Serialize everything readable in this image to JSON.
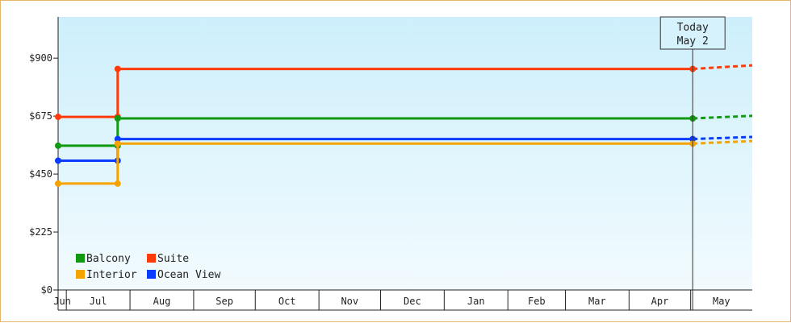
{
  "chart_data": {
    "type": "line",
    "step": true,
    "y_ticks": [
      {
        "value": 0,
        "label": "$0"
      },
      {
        "value": 225,
        "label": "$225"
      },
      {
        "value": 450,
        "label": "$450"
      },
      {
        "value": 675,
        "label": "$675"
      },
      {
        "value": 900,
        "label": "$900"
      }
    ],
    "ylim": [
      0,
      1060
    ],
    "x_domain": [
      "2022-06-27",
      "2023-05-31"
    ],
    "x_months": [
      {
        "label": "Jun",
        "start": "2022-06-27",
        "end": "2022-07-01"
      },
      {
        "label": "Jul",
        "start": "2022-07-01",
        "end": "2022-08-01"
      },
      {
        "label": "Aug",
        "start": "2022-08-01",
        "end": "2022-09-01"
      },
      {
        "label": "Sep",
        "start": "2022-09-01",
        "end": "2022-10-01"
      },
      {
        "label": "Oct",
        "start": "2022-10-01",
        "end": "2022-11-01"
      },
      {
        "label": "Nov",
        "start": "2022-11-01",
        "end": "2022-12-01"
      },
      {
        "label": "Dec",
        "start": "2022-12-01",
        "end": "2023-01-01"
      },
      {
        "label": "Jan",
        "start": "2023-01-01",
        "end": "2023-02-01"
      },
      {
        "label": "Feb",
        "start": "2023-02-01",
        "end": "2023-03-01"
      },
      {
        "label": "Mar",
        "start": "2023-03-01",
        "end": "2023-04-01"
      },
      {
        "label": "Apr",
        "start": "2023-04-01",
        "end": "2023-05-01"
      },
      {
        "label": "May",
        "start": "2023-05-01",
        "end": "2023-05-31"
      }
    ],
    "today": {
      "date": "2023-05-02",
      "line1": "Today",
      "line2": "May 2"
    },
    "legend_position": "bottom-left",
    "grid": false,
    "series": [
      {
        "name": "Suite",
        "color": "#ff3b0a",
        "points": [
          [
            "2022-06-27",
            672
          ],
          [
            "2022-07-26",
            672
          ],
          [
            "2022-07-26",
            858
          ],
          [
            "2023-05-02",
            858
          ]
        ],
        "projection": [
          [
            "2023-05-02",
            858
          ],
          [
            "2023-05-31",
            872
          ]
        ]
      },
      {
        "name": "Balcony",
        "color": "#129912",
        "points": [
          [
            "2022-06-27",
            560
          ],
          [
            "2022-07-26",
            560
          ],
          [
            "2022-07-26",
            666
          ],
          [
            "2023-05-02",
            666
          ]
        ],
        "projection": [
          [
            "2023-05-02",
            666
          ],
          [
            "2023-05-31",
            676
          ]
        ]
      },
      {
        "name": "Ocean View",
        "color": "#0a3bff",
        "points": [
          [
            "2022-06-27",
            502
          ],
          [
            "2022-07-26",
            502
          ],
          [
            "2022-07-26",
            586
          ],
          [
            "2023-05-02",
            586
          ]
        ],
        "projection": [
          [
            "2023-05-02",
            586
          ],
          [
            "2023-05-31",
            594
          ]
        ]
      },
      {
        "name": "Interior",
        "color": "#f5a300",
        "points": [
          [
            "2022-06-27",
            413
          ],
          [
            "2022-07-26",
            413
          ],
          [
            "2022-07-26",
            568
          ],
          [
            "2023-05-02",
            568
          ]
        ],
        "projection": [
          [
            "2023-05-02",
            568
          ],
          [
            "2023-05-31",
            578
          ]
        ]
      }
    ],
    "legend": [
      {
        "name": "Balcony",
        "color": "#129912"
      },
      {
        "name": "Suite",
        "color": "#ff3b0a"
      },
      {
        "name": "Interior",
        "color": "#f5a300"
      },
      {
        "name": "Ocean View",
        "color": "#0a3bff"
      }
    ]
  }
}
